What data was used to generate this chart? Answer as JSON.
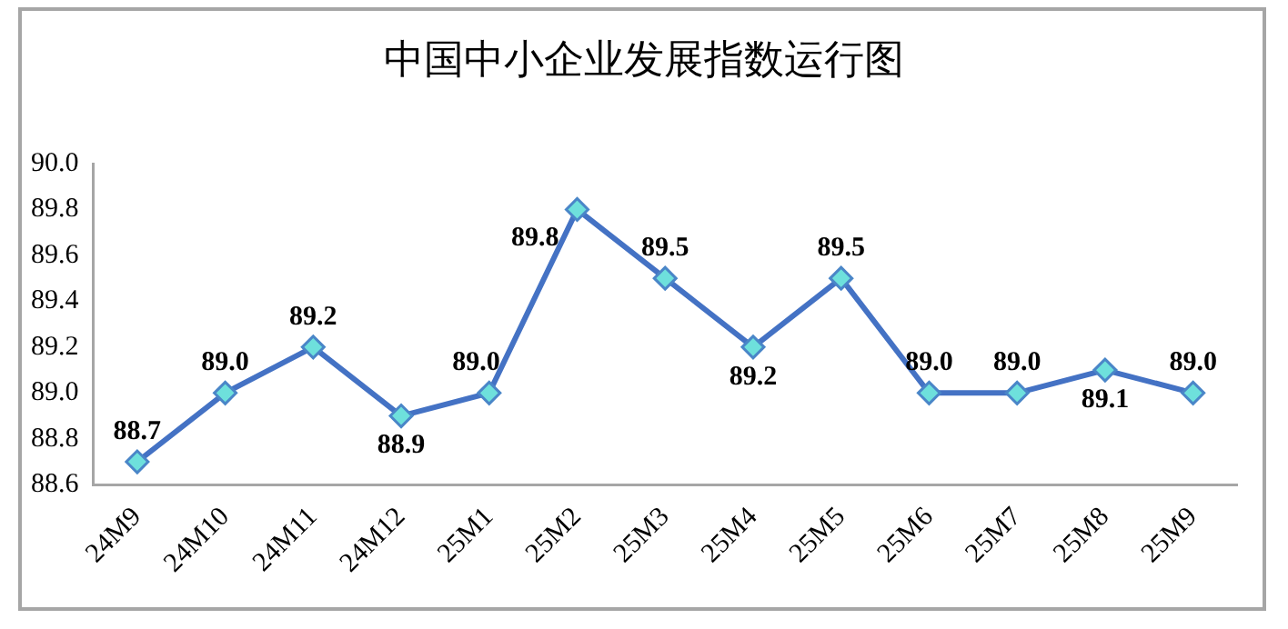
{
  "chart_data": {
    "type": "line",
    "title": "中国中小企业发展指数运行图",
    "categories": [
      "24M9",
      "24M10",
      "24M11",
      "24M12",
      "25M1",
      "25M2",
      "25M3",
      "25M4",
      "25M5",
      "25M6",
      "25M7",
      "25M8",
      "25M9"
    ],
    "series": [
      {
        "color": "#4472c4",
        "values": [
          88.7,
          89.0,
          89.2,
          88.9,
          89.0,
          89.8,
          89.5,
          89.2,
          89.5,
          89.0,
          89.0,
          89.1,
          89.0
        ],
        "value_labels": [
          "88.7",
          "89.0",
          "89.2",
          "88.9",
          "89.0",
          "89.8",
          "89.5",
          "89.2",
          "89.5",
          "89.0",
          "89.0",
          "89.1",
          "89.0"
        ]
      }
    ],
    "ylim": [
      88.6,
      90.0
    ],
    "yticks": [
      {
        "value": 88.6,
        "label": "88.6"
      },
      {
        "value": 88.8,
        "label": "88.8"
      },
      {
        "value": 89.0,
        "label": "89.0"
      },
      {
        "value": 89.2,
        "label": "89.2"
      },
      {
        "value": 89.4,
        "label": "89.4"
      },
      {
        "value": 89.6,
        "label": "89.6"
      },
      {
        "value": 89.8,
        "label": "89.8"
      },
      {
        "value": 90.0,
        "label": "90.0"
      }
    ],
    "grid": false,
    "legend": false,
    "marker": "diamond",
    "line_style": "solid"
  }
}
